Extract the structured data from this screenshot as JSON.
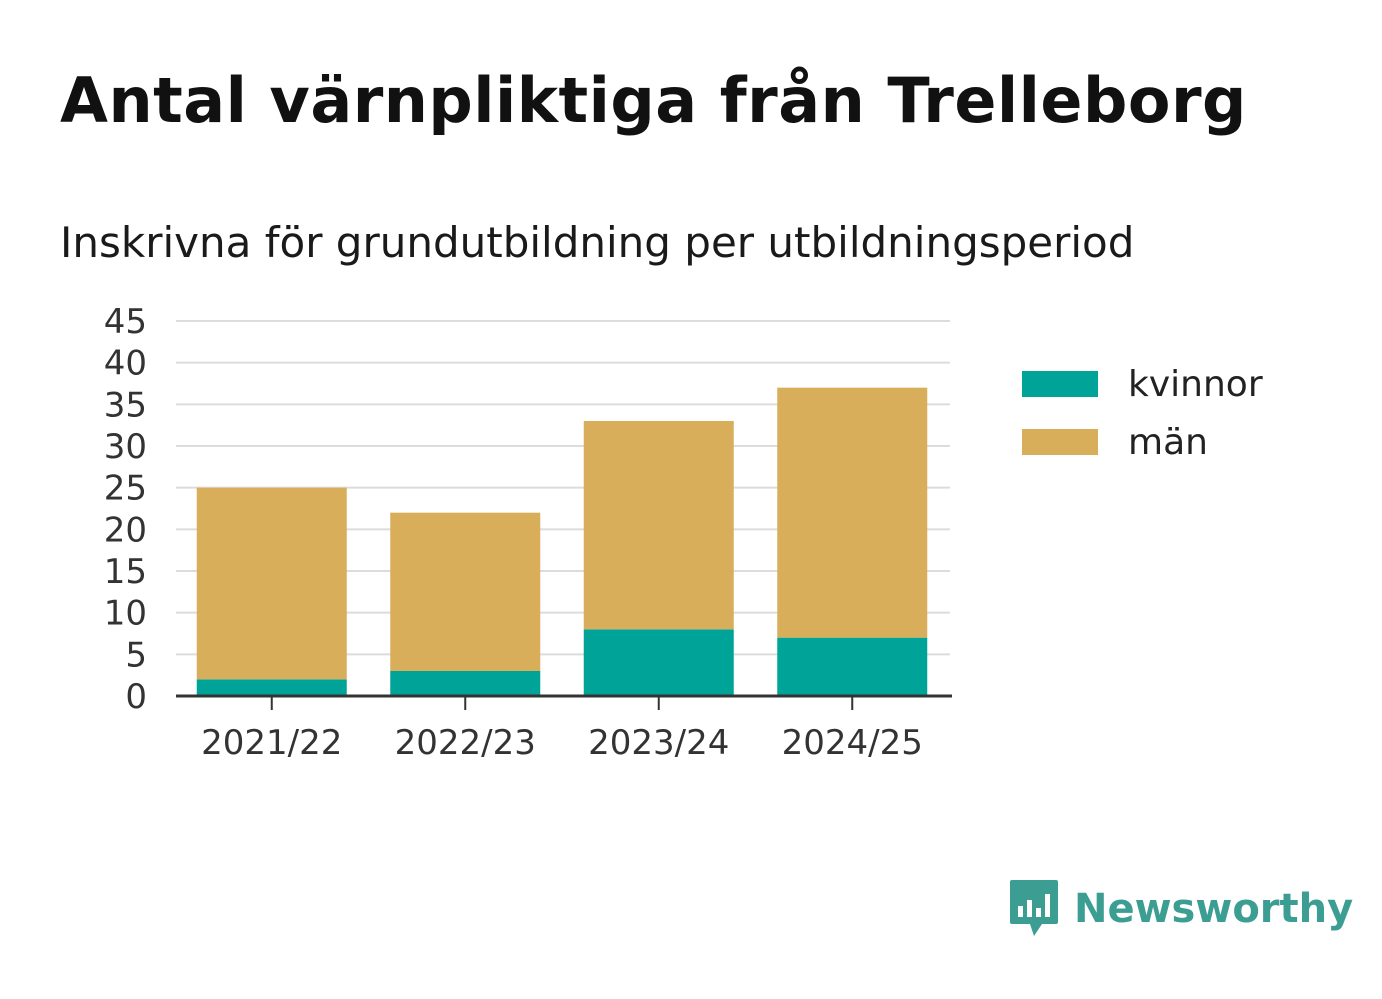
{
  "header": {
    "title": "Antal värnpliktiga från Trelleborg",
    "subtitle": "Inskrivna för grundutbildning per utbildningsperiod"
  },
  "brand": {
    "name": "Newsworthy",
    "color": "#3c9e93",
    "icon": "newsworthy-logo-icon"
  },
  "chart_data": {
    "type": "bar",
    "stacked": true,
    "categories": [
      "2021/22",
      "2022/23",
      "2023/24",
      "2024/25"
    ],
    "series": [
      {
        "name": "kvinnor",
        "color": "#00a398",
        "values": [
          2,
          3,
          8,
          7
        ]
      },
      {
        "name": "män",
        "color": "#d9ae5b",
        "values": [
          23,
          19,
          25,
          30
        ]
      }
    ],
    "ylim": [
      0,
      45
    ],
    "yticks": [
      0,
      5,
      10,
      15,
      20,
      25,
      30,
      35,
      40,
      45
    ],
    "grid": true,
    "legend_position": "right",
    "title": "Antal värnpliktiga från Trelleborg",
    "subtitle": "Inskrivna för grundutbildning per utbildningsperiod",
    "xlabel": "",
    "ylabel": ""
  }
}
